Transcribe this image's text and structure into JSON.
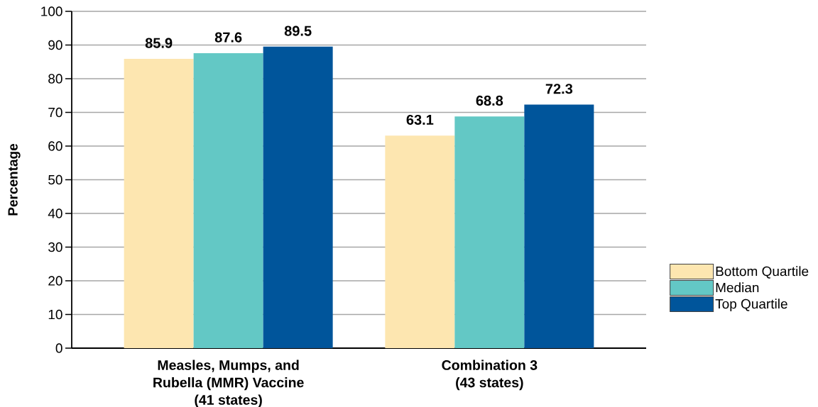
{
  "chart_data": {
    "type": "bar",
    "ylabel": "Percentage",
    "categories": [
      "Measles, Mumps, and\nRubella (MMR) Vaccine\n(41 states)",
      "Combination 3\n(43 states)"
    ],
    "series": [
      {
        "name": "Bottom Quartile",
        "color": "#fde6b0",
        "values": [
          85.9,
          63.1
        ]
      },
      {
        "name": "Median",
        "color": "#63c8c5",
        "values": [
          87.6,
          68.8
        ]
      },
      {
        "name": "Top Quartile",
        "color": "#00559b",
        "values": [
          89.5,
          72.3
        ]
      }
    ],
    "ylim": [
      0,
      100
    ],
    "yticks": [
      0,
      10,
      20,
      30,
      40,
      50,
      60,
      70,
      80,
      90,
      100
    ],
    "grid": "y",
    "legend": "right",
    "data_labels": true
  }
}
